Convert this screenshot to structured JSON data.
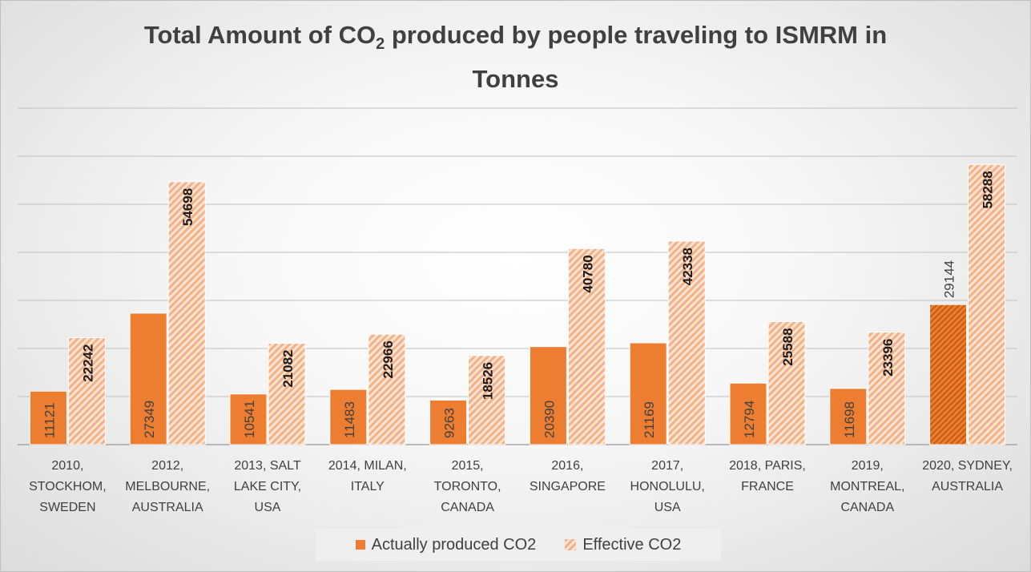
{
  "title": {
    "line1_a": "Total Amount of CO",
    "line1_sub": "2",
    "line1_b": " produced by people traveling to ISMRM in",
    "line2": "Tonnes"
  },
  "colors": {
    "actual": "#ed7d31",
    "effective_stripe": "#f4b183",
    "effective_bg": "#fce4d6",
    "gridline": "#c0c0c0",
    "axis_text": "#404040"
  },
  "legend": {
    "actual_label": "Actually produced CO2",
    "effective_label": "Effective CO2"
  },
  "chart_data": {
    "type": "bar",
    "title": "Total Amount of CO2 produced by people traveling to ISMRM in Tonnes",
    "xlabel": "",
    "ylabel": "",
    "ylim": [
      0,
      70000
    ],
    "grid": true,
    "legend_position": "bottom",
    "categories": [
      [
        "2010,",
        "STOCKHOM,",
        "SWEDEN"
      ],
      [
        "2012,",
        "MELBOURNE,",
        "AUSTRALIA"
      ],
      [
        "2013, SALT",
        "LAKE CITY,",
        "USA"
      ],
      [
        "2014, MILAN,",
        "ITALY"
      ],
      [
        "2015,",
        "TORONTO,",
        "CANADA"
      ],
      [
        "2016,",
        "SINGAPORE"
      ],
      [
        "2017,",
        "HONOLULU,",
        "USA"
      ],
      [
        "2018, PARIS,",
        "FRANCE"
      ],
      [
        "2019,",
        "MONTREAL,",
        "CANADA"
      ],
      [
        "2020, SYDNEY,",
        "AUSTRALIA"
      ]
    ],
    "series": [
      {
        "name": "Actually produced CO2",
        "values": [
          11121,
          27349,
          10541,
          11483,
          9263,
          20390,
          21169,
          12794,
          11698,
          29144
        ]
      },
      {
        "name": "Effective CO2",
        "values": [
          22242,
          54698,
          21082,
          22966,
          18526,
          40780,
          42338,
          25588,
          23396,
          58288
        ]
      }
    ]
  }
}
